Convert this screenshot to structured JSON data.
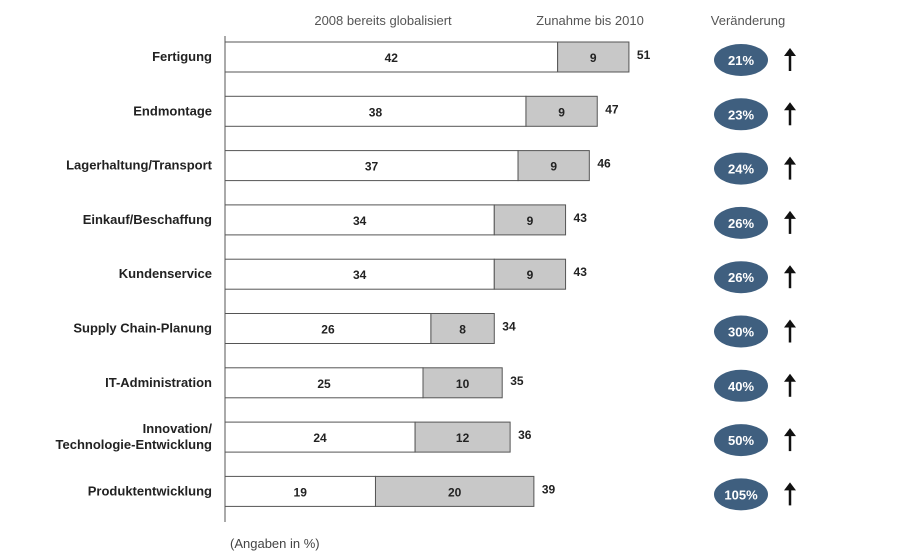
{
  "chart_data": {
    "type": "bar",
    "stacked": true,
    "orientation": "horizontal",
    "categories": [
      [
        "Fertigung"
      ],
      [
        "Endmontage"
      ],
      [
        "Lagerhaltung/Transport"
      ],
      [
        "Einkauf/Beschaffung"
      ],
      [
        "Kundenservice"
      ],
      [
        "Supply Chain-Planung"
      ],
      [
        "IT-Administration"
      ],
      [
        "Innovation/",
        "Technologie-Entwicklung"
      ],
      [
        "Produktentwicklung"
      ]
    ],
    "series": [
      {
        "name": "2008 bereits globalisiert",
        "values": [
          42,
          38,
          37,
          34,
          34,
          26,
          25,
          24,
          19
        ],
        "color": "#ffffff"
      },
      {
        "name": "Zunahme bis 2010",
        "values": [
          9,
          9,
          9,
          9,
          9,
          8,
          10,
          12,
          20
        ],
        "color": "#c8c8c8"
      }
    ],
    "totals": [
      51,
      47,
      46,
      43,
      43,
      34,
      35,
      36,
      39
    ],
    "change_header": "Veränderung",
    "change_values": [
      "21%",
      "23%",
      "24%",
      "26%",
      "26%",
      "30%",
      "40%",
      "50%",
      "105%"
    ],
    "change_direction": "up",
    "footnote": "(Angaben in %)",
    "xlim": [
      0,
      51
    ],
    "grid": false,
    "legend": "top",
    "colors": {
      "badge": "#3f5f7f",
      "bar_border": "#555555",
      "arrow": "#111111",
      "axis": "#555555"
    }
  }
}
